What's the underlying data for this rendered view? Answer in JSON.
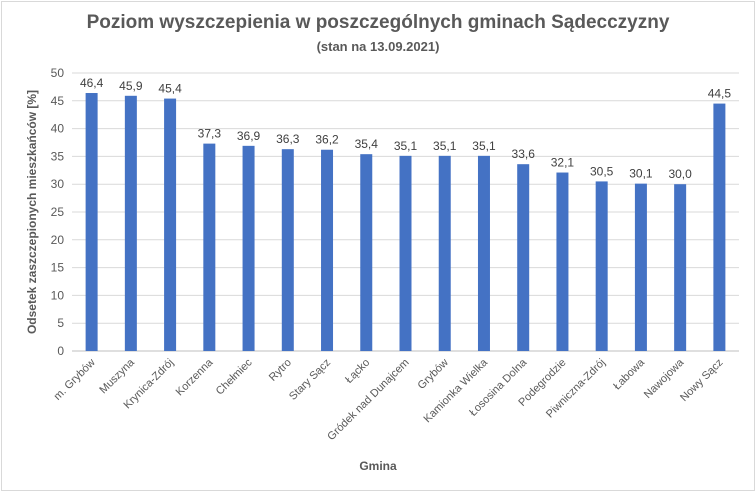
{
  "chart_data": {
    "type": "bar",
    "title": "Poziom wyszczepienia w poszczególnych gminach Sądecczyzny",
    "subtitle": "(stan na 13.09.2021)",
    "xlabel": "Gmina",
    "ylabel": "Odsetek zaszczepionych mieszkańców [%]",
    "ylim": [
      0,
      50
    ],
    "yticks": [
      "0",
      "5",
      "10",
      "15",
      "20",
      "25",
      "30",
      "35",
      "40",
      "45",
      "50"
    ],
    "grid": true,
    "bar_color": "#4472c4",
    "categories": [
      "m. Grybów",
      "Muszyna",
      "Krynica-Zdrój",
      "Korzenna",
      "Chełmiec",
      "Rytro",
      "Stary Sącz",
      "Łącko",
      "Gródek nad Dunajcem",
      "Grybów",
      "Kamionka Wielka",
      "Łososina Dolna",
      "Podegrodzie",
      "Piwniczna-Zdrój",
      "Łabowa",
      "Nawojowa",
      "Nowy Sącz"
    ],
    "values": [
      46.4,
      45.9,
      45.4,
      37.3,
      36.9,
      36.3,
      36.2,
      35.4,
      35.1,
      35.1,
      35.1,
      33.6,
      32.1,
      30.5,
      30.1,
      30.0,
      44.5
    ],
    "value_labels": [
      "46,4",
      "45,9",
      "45,4",
      "37,3",
      "36,9",
      "36,3",
      "36,2",
      "35,4",
      "35,1",
      "35,1",
      "35,1",
      "33,6",
      "32,1",
      "30,5",
      "30,1",
      "30,0",
      "44,5"
    ]
  }
}
